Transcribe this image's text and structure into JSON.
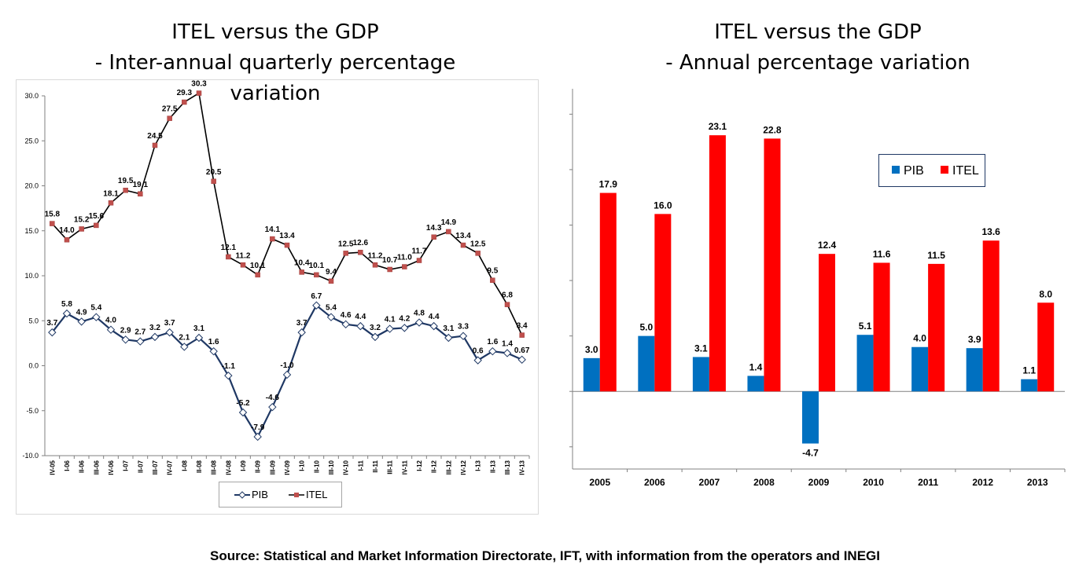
{
  "left_chart_title": [
    "ITEL versus the GDP",
    "- Inter-annual quarterly percentage",
    "variation"
  ],
  "right_chart_title": [
    "ITEL versus the GDP",
    "- Annual percentage variation"
  ],
  "source": "Source: Statistical and Market Information Directorate, IFT, with information from the operators and INEGI",
  "colors": {
    "pib_line": "#1f3864",
    "itel_line": "#c0504d",
    "pib_bar": "#0070c0",
    "itel_bar": "#ff0000"
  },
  "chart_data": [
    {
      "type": "line",
      "title": "ITEL versus the GDP - Inter-annual quarterly percentage variation",
      "x": [
        "IV-05",
        "I-06",
        "II-06",
        "III-06",
        "IV-06",
        "I-07",
        "II-07",
        "III-07",
        "IV-07",
        "I-08",
        "II-08",
        "III-08",
        "IV-08",
        "I-09",
        "II-09",
        "III-09",
        "IV-09",
        "I-10",
        "II-10",
        "III-10",
        "IV-10",
        "I-11",
        "II-11",
        "III-11",
        "IV-11",
        "I-12",
        "II-12",
        "III-12",
        "IV-12",
        "I-13",
        "II-13",
        "III-13",
        "IV-13"
      ],
      "series": [
        {
          "name": "PIB",
          "values": [
            3.7,
            5.8,
            4.9,
            5.4,
            4.0,
            2.9,
            2.7,
            3.2,
            3.7,
            2.1,
            3.1,
            1.6,
            -1.1,
            -5.2,
            -7.9,
            -4.6,
            -1.0,
            3.7,
            6.7,
            5.4,
            4.6,
            4.4,
            3.2,
            4.1,
            4.2,
            4.8,
            4.4,
            3.1,
            3.3,
            0.6,
            1.6,
            1.4,
            0.67
          ],
          "labels": [
            "3.7",
            "5.8",
            "4.9",
            "5.4",
            "4.0",
            "2.9",
            "2.7",
            "3.2",
            "3.7",
            "2.1",
            "3.1",
            "1.6",
            "-1.1",
            "-5.2",
            "-7.9",
            "-4.6",
            "-1.0",
            "3.7",
            "6.7",
            "5.4",
            "4.6",
            "4.4",
            "3.2",
            "4.1",
            "4.2",
            "4.8",
            "4.4",
            "3.1",
            "3.3",
            "0.6",
            "1.6",
            "1.4",
            "0.67"
          ]
        },
        {
          "name": "ITEL",
          "values": [
            15.8,
            14.0,
            15.2,
            15.6,
            18.1,
            19.5,
            19.1,
            24.5,
            27.5,
            29.3,
            30.3,
            20.5,
            12.1,
            11.2,
            10.1,
            14.1,
            13.4,
            10.4,
            10.1,
            9.4,
            12.5,
            12.6,
            11.2,
            10.7,
            11.0,
            11.7,
            14.3,
            14.9,
            13.4,
            12.5,
            9.5,
            6.8,
            3.4
          ],
          "labels": [
            "15.8",
            "14.0",
            "15.2",
            "15.6",
            "18.1",
            "19.5",
            "19.1",
            "24.5",
            "27.5",
            "29.3",
            "30.3",
            "20.5",
            "12.1",
            "11.2",
            "10.1",
            "14.1",
            "13.4",
            "10.4",
            "10.1",
            "9.4",
            "12.5",
            "12.6",
            "11.2",
            "10.7",
            "11.0",
            "11.7",
            "14.3",
            "14.9",
            "13.4",
            "12.5",
            "9.5",
            "6.8",
            "3.4"
          ]
        }
      ],
      "ylim": [
        -10,
        30
      ],
      "yticks": [
        30,
        25,
        20,
        15,
        10,
        5,
        0,
        -5,
        -10
      ],
      "ytick_labels": [
        "30.0",
        "25.0",
        "20.0",
        "15.0",
        "10.0",
        "5.0",
        "0.0",
        "-5.0",
        "-10.0"
      ],
      "legend": [
        "PIB",
        "ITEL"
      ],
      "legend_position": "bottom"
    },
    {
      "type": "bar",
      "title": "ITEL versus the GDP - Annual percentage variation",
      "categories": [
        "2005",
        "2006",
        "2007",
        "2008",
        "2009",
        "2010",
        "2011",
        "2012",
        "2013"
      ],
      "series": [
        {
          "name": "PIB",
          "values": [
            3.0,
            5.0,
            3.1,
            1.4,
            -4.7,
            5.1,
            4.0,
            3.9,
            1.1
          ],
          "labels": [
            "3.0",
            "5.0",
            "3.1",
            "1.4",
            "-4.7",
            "5.1",
            "4.0",
            "3.9",
            "1.1"
          ]
        },
        {
          "name": "ITEL",
          "values": [
            17.9,
            16.0,
            23.1,
            22.8,
            12.4,
            11.6,
            11.5,
            13.6,
            8.0
          ],
          "labels": [
            "17.9",
            "16.0",
            "23.1",
            "22.8",
            "12.4",
            "11.6",
            "11.5",
            "13.6",
            "8.0"
          ]
        }
      ],
      "ylim": [
        -7,
        28
      ],
      "legend": [
        "PIB",
        "ITEL"
      ],
      "legend_position": "top-right"
    }
  ]
}
